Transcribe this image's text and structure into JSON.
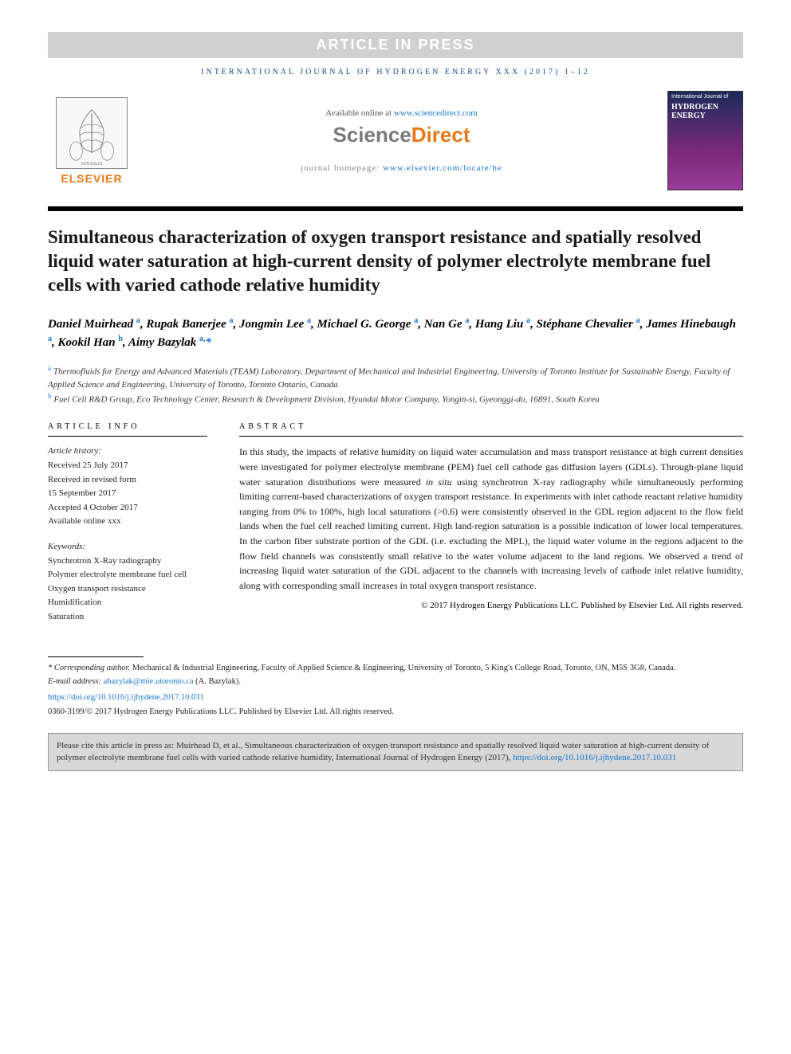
{
  "banner": {
    "text": "ARTICLE IN PRESS"
  },
  "journal_header": "INTERNATIONAL JOURNAL OF HYDROGEN ENERGY XXX (2017) 1–12",
  "sd": {
    "available_prefix": "Available online at ",
    "available_link": "www.sciencedirect.com",
    "logo_left": "Science",
    "logo_right": "Direct",
    "homepage_label": "journal homepage: ",
    "homepage_link": "www.elsevier.com/locate/he"
  },
  "elsevier": {
    "label": "ELSEVIER"
  },
  "cover": {
    "line1": "International Journal of",
    "hy": "HYDROGEN",
    "en": "ENERGY"
  },
  "title": "Simultaneous characterization of oxygen transport resistance and spatially resolved liquid water saturation at high-current density of polymer electrolyte membrane fuel cells with varied cathode relative humidity",
  "authors_html": "Daniel Muirhead <sup>a</sup>, Rupak Banerjee <sup>a</sup>, Jongmin Lee <sup>a</sup>, Michael G. George <sup>a</sup>, Nan Ge <sup>a</sup>, Hang Liu <sup>a</sup>, Stéphane Chevalier <sup>a</sup>, James Hinebaugh <sup>a</sup>, Kookil Han <sup>b</sup>, Aimy Bazylak <sup>a,</sup><span class='corr'>*</span>",
  "affiliations": [
    {
      "sup": "a",
      "text": "Thermofluids for Energy and Advanced Materials (TEAM) Laboratory, Department of Mechanical and Industrial Engineering, University of Toronto Institute for Sustainable Energy, Faculty of Applied Science and Engineering, University of Toronto, Toronto Ontario, Canada"
    },
    {
      "sup": "b",
      "text": "Fuel Cell R&D Group, Eco Technology Center, Research & Development Division, Hyundai Motor Company, Yongin-si, Gyeonggi-do, 16891, South Korea"
    }
  ],
  "article_info": {
    "header": "ARTICLE INFO",
    "history_label": "Article history:",
    "history": [
      "Received 25 July 2017",
      "Received in revised form",
      "15 September 2017",
      "Accepted 4 October 2017",
      "Available online xxx"
    ],
    "keywords_label": "Keywords:",
    "keywords": [
      "Synchrotron X-Ray radiography",
      "Polymer electrolyte membrane fuel cell",
      "Oxygen transport resistance",
      "Humidification",
      "Saturation"
    ]
  },
  "abstract": {
    "header": "ABSTRACT",
    "text": "In this study, the impacts of relative humidity on liquid water accumulation and mass transport resistance at high current densities were investigated for polymer electrolyte membrane (PEM) fuel cell cathode gas diffusion layers (GDLs). Through-plane liquid water saturation distributions were measured in situ using synchrotron X-ray radiography while simultaneously performing limiting current-based characterizations of oxygen transport resistance. In experiments with inlet cathode reactant relative humidity ranging from 0% to 100%, high local saturations (>0.6) were consistently observed in the GDL region adjacent to the flow field lands when the fuel cell reached limiting current. High land-region saturation is a possible indication of lower local temperatures. In the carbon fiber substrate portion of the GDL (i.e. excluding the MPL), the liquid water volume in the regions adjacent to the flow field channels was consistently small relative to the water volume adjacent to the land regions. We observed a trend of increasing liquid water saturation of the GDL adjacent to the channels with increasing levels of cathode inlet relative humidity, along with corresponding small increases in total oxygen transport resistance.",
    "copyright": "© 2017 Hydrogen Energy Publications LLC. Published by Elsevier Ltd. All rights reserved."
  },
  "footnotes": {
    "corr_label": "* Corresponding author.",
    "corr_text": " Mechanical & Industrial Engineering, Faculty of Applied Science & Engineering, University of Toronto, 5 King's College Road, Toronto, ON, M5S 3G8, Canada.",
    "email_label": "E-mail address: ",
    "email": "abazylak@mie.utoronto.ca",
    "email_suffix": " (A. Bazylak).",
    "doi": "https://doi.org/10.1016/j.ijhydene.2017.10.031",
    "issn_copy": "0360-3199/© 2017 Hydrogen Energy Publications LLC. Published by Elsevier Ltd. All rights reserved."
  },
  "cite_box": {
    "text_prefix": "Please cite this article in press as: Muirhead D, et al., Simultaneous characterization of oxygen transport resistance and spatially resolved liquid water saturation at high-current density of polymer electrolyte membrane fuel cells with varied cathode relative humidity, International Journal of Hydrogen Energy (2017), ",
    "link": "https://doi.org/10.1016/j.ijhydene.2017.10.031"
  }
}
